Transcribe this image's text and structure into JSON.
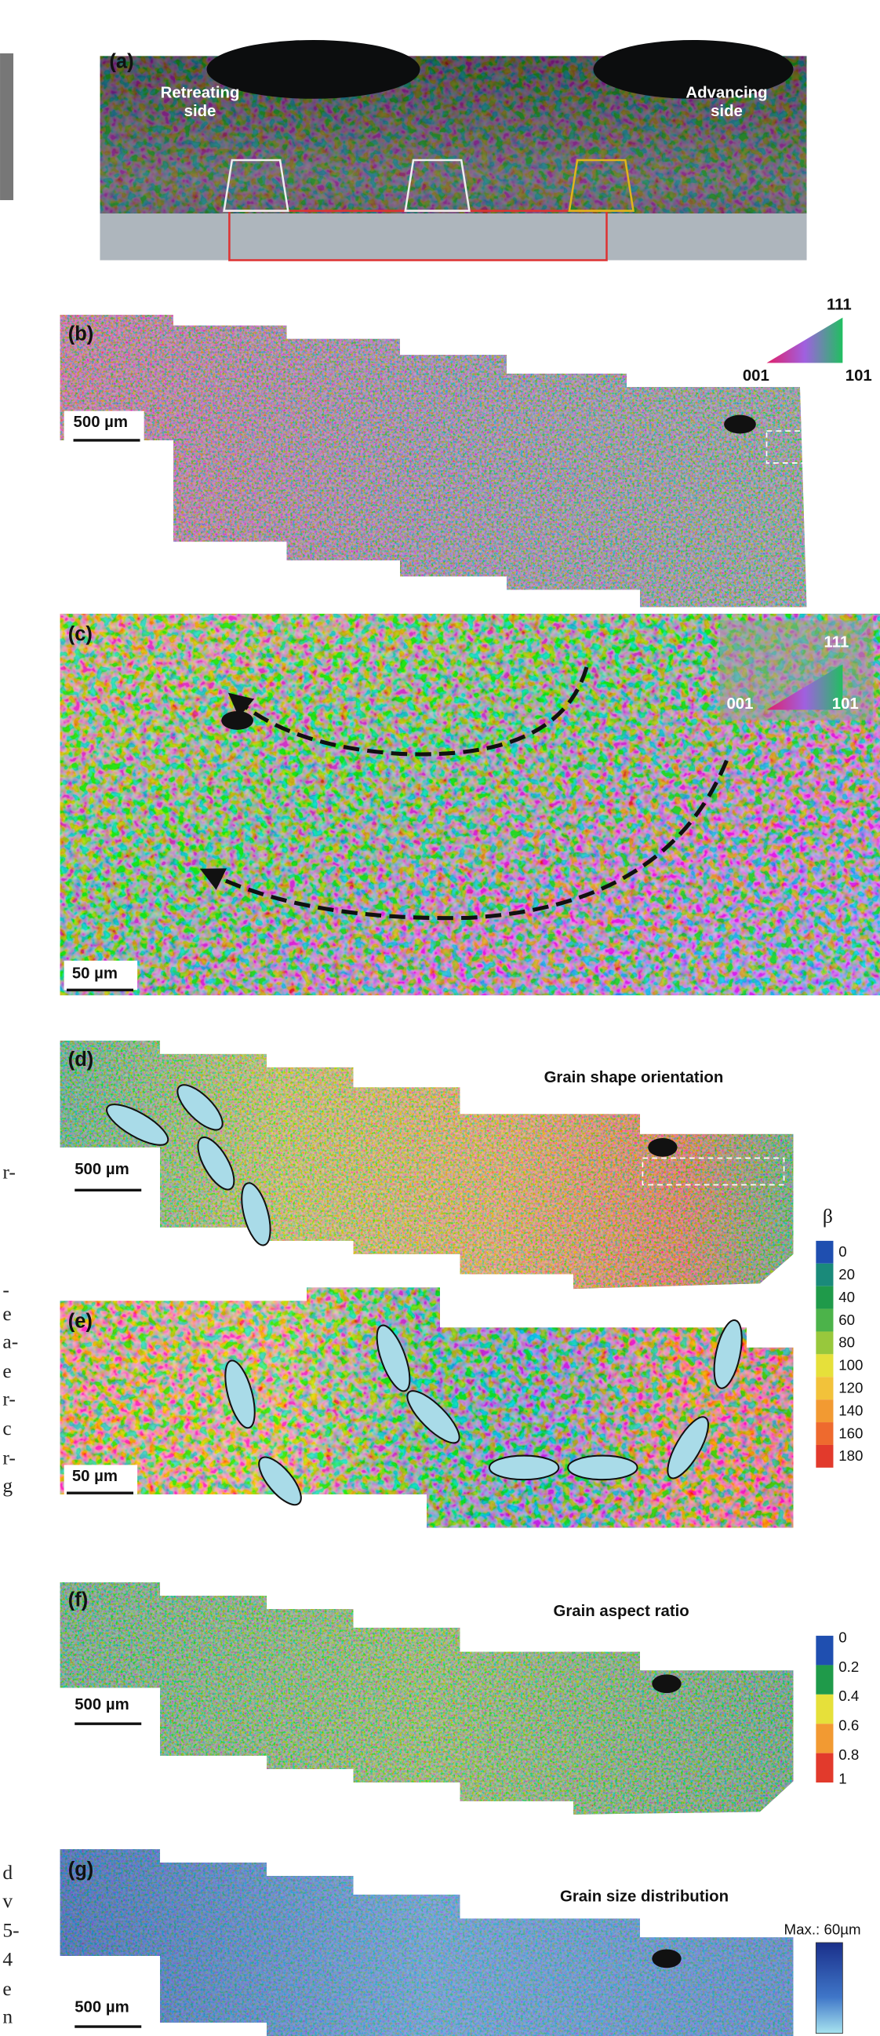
{
  "left_margin_fragments": [
    "r-",
    "-",
    "e",
    "a-",
    "e",
    "r-",
    "c",
    "r-",
    "g",
    "d",
    "v",
    "5-",
    "4",
    "e",
    "n"
  ],
  "panels": {
    "a": {
      "label": "(a)",
      "retreating": [
        "Retreating",
        "side"
      ],
      "advancing": [
        "Advancing",
        "side"
      ]
    },
    "b": {
      "label": "(b)",
      "scale_bar": "500 µm",
      "ipf_key": [
        "111",
        "001",
        "101"
      ]
    },
    "c": {
      "label": "(c)",
      "scale_bar": "50 µm",
      "ipf_key": [
        "111",
        "001",
        "101"
      ]
    },
    "d": {
      "label": "(d)",
      "title": "Grain shape orientation",
      "scale_bar": "500 µm"
    },
    "e": {
      "label": "(e)",
      "scale_bar": "50 µm"
    },
    "f": {
      "label": "(f)",
      "title": "Grain aspect ratio",
      "scale_bar": "500 µm"
    },
    "g": {
      "label": "(g)",
      "title": "Grain size distribution",
      "scale_bar": "500 µm",
      "max_label": "Max.: 60µm"
    }
  },
  "beta_legend": {
    "symbol": "β",
    "labels": [
      "0",
      "20",
      "40",
      "60",
      "80",
      "100",
      "120",
      "140",
      "160",
      "180"
    ]
  },
  "aspect_legend": {
    "labels": [
      "0",
      "0.2",
      "0.4",
      "0.6",
      "0.8",
      "1"
    ]
  }
}
